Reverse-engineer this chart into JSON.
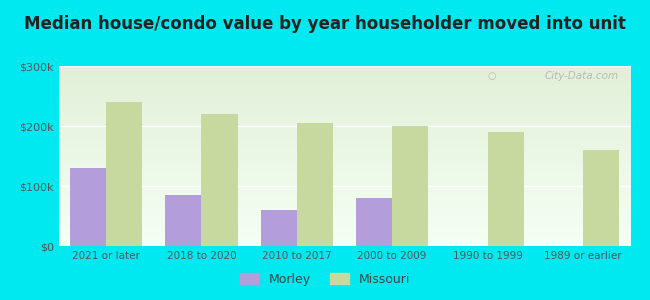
{
  "title": "Median house/condo value by year householder moved into unit",
  "categories": [
    "2021 or later",
    "2018 to 2020",
    "2010 to 2017",
    "2000 to 2009",
    "1990 to 1999",
    "1989 or earlier"
  ],
  "morley_values": [
    130000,
    85000,
    60000,
    80000,
    0,
    0
  ],
  "missouri_values": [
    240000,
    220000,
    205000,
    200000,
    190000,
    160000
  ],
  "morley_color": "#b39ddb",
  "missouri_color": "#c8d9a0",
  "background_outer": "#00e8f0",
  "background_inner_top": "#e2f0d8",
  "background_inner_bottom": "#f5fff5",
  "ylim": [
    0,
    300000
  ],
  "yticks": [
    0,
    100000,
    200000,
    300000
  ],
  "ytick_labels": [
    "$0",
    "$100k",
    "$200k",
    "$300k"
  ],
  "legend_labels": [
    "Morley",
    "Missouri"
  ],
  "watermark": "City-Data.com",
  "title_fontsize": 12,
  "bar_width": 0.38
}
